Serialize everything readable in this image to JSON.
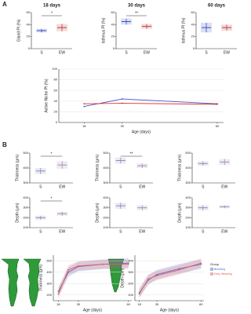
{
  "panels": [
    "A",
    "B"
  ],
  "chart_data": [
    {
      "type": "errorbar",
      "title": "18 days",
      "ylabel": "Gland PI (%)",
      "categories": [
        "S",
        "EW"
      ],
      "values": [
        30,
        35
      ],
      "errors": [
        3,
        6
      ],
      "colors": [
        "#3a4fc0",
        "#c03a3a"
      ],
      "ylim": [
        0,
        60
      ],
      "yticks": [
        0,
        20,
        40,
        60
      ],
      "sig": "*"
    },
    {
      "type": "errorbar",
      "title": "30 days",
      "ylabel": "Isthmus PI (%)",
      "categories": [
        "S",
        "EW"
      ],
      "values": [
        45,
        37
      ],
      "errors": [
        5,
        4
      ],
      "colors": [
        "#3a4fc0",
        "#c03a3a"
      ],
      "ylim": [
        0,
        60
      ],
      "yticks": [
        0,
        20,
        40,
        60
      ],
      "sig": "**"
    },
    {
      "type": "errorbar",
      "title": "60 days",
      "ylabel": "Isthmus PI (%)",
      "categories": [
        "S",
        "EW"
      ],
      "values": [
        35,
        35
      ],
      "errors": [
        8,
        5
      ],
      "colors": [
        "#3a4fc0",
        "#c03a3a"
      ],
      "ylim": [
        0,
        60
      ],
      "yticks": [
        0,
        20,
        40,
        60
      ]
    },
    {
      "type": "line",
      "ylabel": "Active Niche PI (%)",
      "xlabel": "Age (days)",
      "x": [
        18,
        30,
        60
      ],
      "xlim": [
        10,
        62
      ],
      "xticks": [
        18,
        30,
        60
      ],
      "ylim": [
        0,
        100
      ],
      "yticks": [
        0,
        20,
        40,
        60,
        80,
        100
      ],
      "grid": true,
      "series": [
        {
          "color": "#4455cc",
          "values": [
            30,
            44,
            35
          ]
        },
        {
          "color": "#dd3333",
          "values": [
            35,
            36,
            34
          ]
        }
      ]
    },
    {
      "type": "errorbar",
      "ylabel": "Thickness (µm)",
      "categories": [
        "S",
        "EW"
      ],
      "values": [
        380,
        420
      ],
      "errors": [
        20,
        25
      ],
      "colors": [
        "#8a8fb8",
        "#a78ab8"
      ],
      "ylim": [
        300,
        500
      ],
      "yticks": [
        300,
        400,
        500
      ],
      "sig": "*"
    },
    {
      "type": "errorbar",
      "ylabel": "Thickness (µm)",
      "categories": [
        "S",
        "EW"
      ],
      "values": [
        450,
        415
      ],
      "errors": [
        20,
        15
      ],
      "colors": [
        "#8a8fb8",
        "#a78ab8"
      ],
      "ylim": [
        300,
        500
      ],
      "yticks": [
        300,
        400,
        500
      ],
      "sig": "**"
    },
    {
      "type": "errorbar",
      "ylabel": "Thickness (µm)",
      "categories": [
        "S",
        "EW"
      ],
      "values": [
        430,
        440
      ],
      "errors": [
        15,
        20
      ],
      "colors": [
        "#8a8fb8",
        "#a78ab8"
      ],
      "ylim": [
        300,
        500
      ],
      "yticks": [
        300,
        400,
        500
      ]
    },
    {
      "type": "errorbar",
      "ylabel": "Depth (µm)",
      "categories": [
        "S",
        "EW"
      ],
      "values": [
        200,
        240
      ],
      "errors": [
        20,
        20
      ],
      "colors": [
        "#8a8fb8",
        "#a78ab8"
      ],
      "ylim": [
        100,
        400
      ],
      "yticks": [
        100,
        200,
        300,
        400
      ],
      "sig": "*"
    },
    {
      "type": "errorbar",
      "ylabel": "Depth (µm)",
      "categories": [
        "S",
        "EW"
      ],
      "values": [
        320,
        300
      ],
      "errors": [
        30,
        25
      ],
      "colors": [
        "#8a8fb8",
        "#a78ab8"
      ],
      "ylim": [
        100,
        400
      ],
      "yticks": [
        100,
        200,
        300,
        400
      ]
    },
    {
      "type": "errorbar",
      "ylabel": "Depth (µm)",
      "categories": [
        "S",
        "EW"
      ],
      "values": [
        300,
        310
      ],
      "errors": [
        25,
        15
      ],
      "colors": [
        "#8a8fb8",
        "#a78ab8"
      ],
      "ylim": [
        100,
        400
      ],
      "yticks": [
        100,
        200,
        300,
        400
      ]
    },
    {
      "type": "line",
      "ylabel": "Thickness (µm)",
      "xlabel": "Age (days)",
      "x": [
        18,
        24,
        30,
        45,
        60
      ],
      "xlim": [
        15,
        62
      ],
      "xticks": [
        18,
        30,
        60
      ],
      "ylim": [
        150,
        550
      ],
      "yticks": [
        200,
        300,
        400,
        500
      ],
      "grid": true,
      "band": true,
      "series": [
        {
          "name": "Breeding",
          "color": "#4a6fd8",
          "values": [
            230,
            400,
            450,
            470,
            480
          ]
        },
        {
          "name": "Early Weaning",
          "color": "#e0605a",
          "values": [
            210,
            420,
            455,
            470,
            470
          ]
        }
      ]
    },
    {
      "type": "line",
      "ylabel": "Depth (µm)",
      "xlabel": "Age (days)",
      "x": [
        18,
        24,
        30,
        45,
        60
      ],
      "xlim": [
        15,
        62
      ],
      "xticks": [
        18,
        30,
        60
      ],
      "ylim": [
        50,
        450
      ],
      "yticks": [
        100,
        200,
        300,
        400
      ],
      "grid": true,
      "band": true,
      "legend_title": "Group",
      "legend": "right",
      "series": [
        {
          "name": "Breeding",
          "color": "#4a6fd8",
          "values": [
            120,
            230,
            280,
            330,
            370
          ]
        },
        {
          "name": "Early Weaning",
          "color": "#e0605a",
          "values": [
            110,
            240,
            270,
            320,
            380
          ]
        }
      ]
    }
  ]
}
